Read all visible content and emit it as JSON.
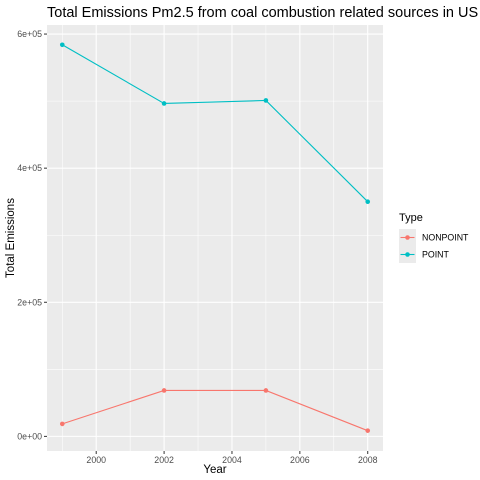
{
  "chart_data": {
    "type": "line",
    "title": "Total Emissions Pm2.5 from coal combustion related sources in US",
    "xlabel": "Year",
    "ylabel": "Total Emissions",
    "x": [
      1999,
      2002,
      2005,
      2008
    ],
    "xlim": [
      1998.55,
      2008.45
    ],
    "ylim": [
      -21800,
      613500
    ],
    "x_ticks": [
      2000,
      2002,
      2004,
      2006,
      2008
    ],
    "x_tick_labels": [
      "2000",
      "2002",
      "2004",
      "2006",
      "2008"
    ],
    "y_ticks": [
      0,
      200000,
      400000,
      600000
    ],
    "y_tick_labels": [
      "0e+00",
      "2e+05",
      "4e+05",
      "6e+05"
    ],
    "grid": true,
    "legend": {
      "title": "Type",
      "placement": "right"
    },
    "series": [
      {
        "name": "NONPOINT",
        "color": "#F8766D",
        "values": [
          18600,
          68500,
          68500,
          8500
        ]
      },
      {
        "name": "POINT",
        "color": "#00BFC4",
        "values": [
          584000,
          496500,
          501000,
          350000
        ]
      }
    ],
    "panel_background": "#EBEBEB",
    "grid_color": "#FFFFFF"
  }
}
